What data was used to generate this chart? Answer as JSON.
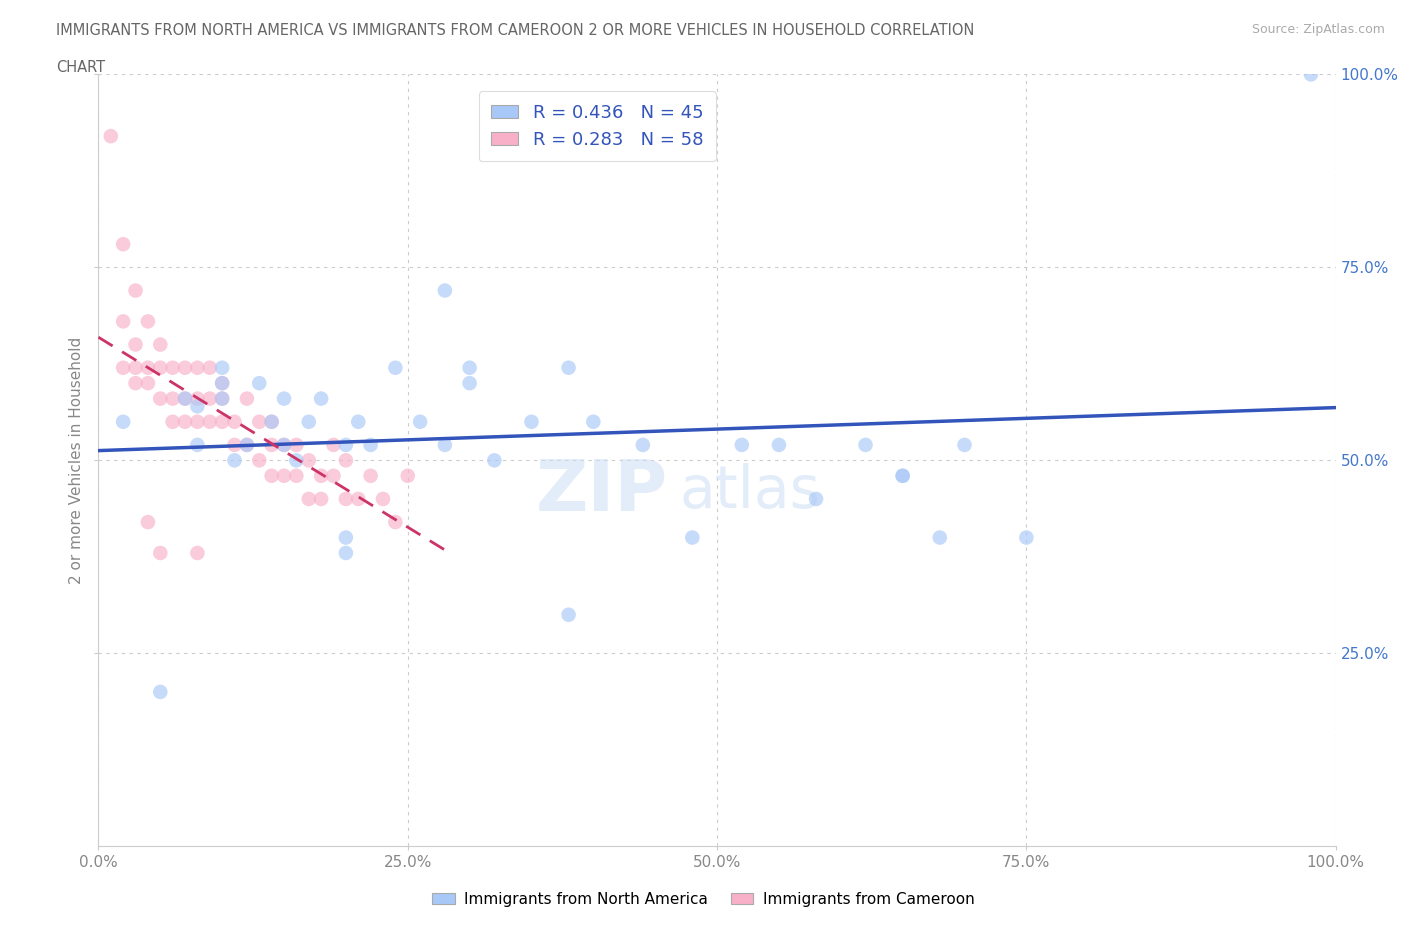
{
  "title_line1": "IMMIGRANTS FROM NORTH AMERICA VS IMMIGRANTS FROM CAMEROON 2 OR MORE VEHICLES IN HOUSEHOLD CORRELATION",
  "title_line2": "CHART",
  "source": "Source: ZipAtlas.com",
  "ylabel": "2 or more Vehicles in Household",
  "xlim": [
    0.0,
    1.0
  ],
  "ylim": [
    0.0,
    1.0
  ],
  "xtick_labels": [
    "0.0%",
    "25.0%",
    "50.0%",
    "75.0%",
    "100.0%"
  ],
  "xtick_vals": [
    0.0,
    0.25,
    0.5,
    0.75,
    1.0
  ],
  "ytick_labels": [
    "25.0%",
    "50.0%",
    "75.0%",
    "100.0%"
  ],
  "ytick_vals": [
    0.25,
    0.5,
    0.75,
    1.0
  ],
  "legend_labels": [
    "Immigrants from North America",
    "Immigrants from Cameroon"
  ],
  "blue_R": 0.436,
  "blue_N": 45,
  "pink_R": 0.283,
  "pink_N": 58,
  "blue_color": "#a8c8f8",
  "pink_color": "#f8b0c8",
  "blue_line_color": "#3355bb",
  "pink_line_color": "#cc3366",
  "watermark_zip": "ZIP",
  "watermark_atlas": "atlas",
  "background_color": "#ffffff",
  "blue_x": [
    0.02,
    0.05,
    0.07,
    0.08,
    0.1,
    0.11,
    0.12,
    0.13,
    0.14,
    0.15,
    0.16,
    0.17,
    0.18,
    0.2,
    0.21,
    0.22,
    0.24,
    0.26,
    0.28,
    0.3,
    0.32,
    0.35,
    0.38,
    0.4,
    0.44,
    0.48,
    0.52,
    0.55,
    0.58,
    0.62,
    0.65,
    0.68,
    0.38,
    0.08,
    0.2,
    0.15,
    0.1,
    0.28,
    0.3,
    0.65,
    0.7,
    0.75,
    0.98,
    0.2,
    0.1
  ],
  "blue_y": [
    0.55,
    0.2,
    0.58,
    0.52,
    0.58,
    0.5,
    0.52,
    0.6,
    0.55,
    0.52,
    0.5,
    0.55,
    0.58,
    0.52,
    0.55,
    0.52,
    0.62,
    0.55,
    0.52,
    0.6,
    0.5,
    0.55,
    0.62,
    0.55,
    0.52,
    0.4,
    0.52,
    0.52,
    0.45,
    0.52,
    0.48,
    0.4,
    0.3,
    0.57,
    0.4,
    0.58,
    0.62,
    0.72,
    0.62,
    0.48,
    0.52,
    0.4,
    1.0,
    0.38,
    0.6
  ],
  "pink_x": [
    0.01,
    0.02,
    0.02,
    0.03,
    0.03,
    0.03,
    0.04,
    0.04,
    0.04,
    0.05,
    0.05,
    0.05,
    0.06,
    0.06,
    0.06,
    0.07,
    0.07,
    0.07,
    0.08,
    0.08,
    0.08,
    0.09,
    0.09,
    0.09,
    0.1,
    0.1,
    0.1,
    0.11,
    0.11,
    0.12,
    0.12,
    0.13,
    0.13,
    0.14,
    0.14,
    0.15,
    0.15,
    0.16,
    0.16,
    0.17,
    0.17,
    0.18,
    0.18,
    0.19,
    0.19,
    0.2,
    0.2,
    0.21,
    0.22,
    0.23,
    0.24,
    0.25,
    0.04,
    0.05,
    0.08,
    0.14,
    0.02,
    0.03
  ],
  "pink_y": [
    0.92,
    0.62,
    0.68,
    0.65,
    0.62,
    0.6,
    0.68,
    0.62,
    0.6,
    0.65,
    0.62,
    0.58,
    0.62,
    0.58,
    0.55,
    0.62,
    0.58,
    0.55,
    0.62,
    0.58,
    0.55,
    0.62,
    0.58,
    0.55,
    0.6,
    0.58,
    0.55,
    0.55,
    0.52,
    0.58,
    0.52,
    0.55,
    0.5,
    0.52,
    0.48,
    0.52,
    0.48,
    0.52,
    0.48,
    0.5,
    0.45,
    0.48,
    0.45,
    0.52,
    0.48,
    0.5,
    0.45,
    0.45,
    0.48,
    0.45,
    0.42,
    0.48,
    0.42,
    0.38,
    0.38,
    0.55,
    0.78,
    0.72
  ]
}
